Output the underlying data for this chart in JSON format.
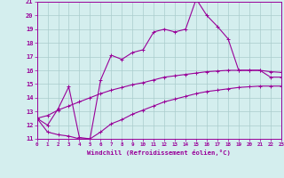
{
  "x_main": [
    0,
    1,
    2,
    3,
    4,
    5,
    6,
    7,
    8,
    9,
    10,
    11,
    12,
    13,
    14,
    15,
    16,
    17,
    18,
    19,
    20,
    21,
    22,
    23
  ],
  "y_main": [
    12.5,
    12.0,
    13.2,
    14.8,
    11.1,
    11.0,
    15.3,
    17.1,
    16.8,
    17.3,
    17.5,
    18.8,
    19.0,
    18.8,
    19.0,
    21.2,
    20.0,
    19.2,
    18.3,
    16.0,
    16.0,
    16.0,
    15.5,
    15.5
  ],
  "y_upper": [
    12.5,
    12.7,
    13.1,
    13.4,
    13.7,
    14.0,
    14.3,
    14.55,
    14.75,
    14.95,
    15.1,
    15.3,
    15.5,
    15.6,
    15.7,
    15.8,
    15.9,
    15.95,
    16.0,
    16.0,
    16.0,
    16.0,
    15.9,
    15.85
  ],
  "y_lower": [
    12.5,
    11.5,
    11.3,
    11.2,
    11.0,
    11.0,
    11.5,
    12.1,
    12.4,
    12.8,
    13.1,
    13.4,
    13.7,
    13.9,
    14.1,
    14.3,
    14.45,
    14.55,
    14.65,
    14.75,
    14.8,
    14.85,
    14.85,
    14.85
  ],
  "color": "#990099",
  "bg_color": "#d4eeee",
  "grid_color": "#aacccc",
  "ylim_min": 11,
  "ylim_max": 21,
  "xlim_min": 0,
  "xlim_max": 23,
  "yticks": [
    11,
    12,
    13,
    14,
    15,
    16,
    17,
    18,
    19,
    20,
    21
  ],
  "xticks": [
    0,
    1,
    2,
    3,
    4,
    5,
    6,
    7,
    8,
    9,
    10,
    11,
    12,
    13,
    14,
    15,
    16,
    17,
    18,
    19,
    20,
    21,
    22,
    23
  ],
  "xlabel": "Windchill (Refroidissement éolien,°C)"
}
